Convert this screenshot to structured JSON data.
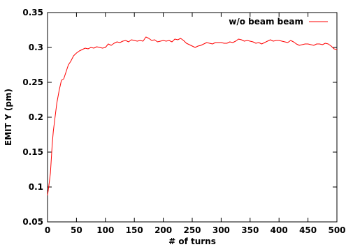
{
  "chart_data": {
    "type": "line",
    "title": "",
    "xlabel": "# of turns",
    "ylabel": "EMIT Y (pm)",
    "xlim": [
      0,
      500
    ],
    "ylim": [
      0.05,
      0.35
    ],
    "grid": false,
    "legend_position": "top-right",
    "x_ticks": [
      0,
      50,
      100,
      150,
      200,
      250,
      300,
      350,
      400,
      450,
      500
    ],
    "x_tick_labels": [
      "0",
      "50",
      "100",
      "150",
      "200",
      "250",
      "300",
      "350",
      "400",
      "450",
      "500"
    ],
    "y_ticks": [
      0.05,
      0.1,
      0.15,
      0.2,
      0.25,
      0.3,
      0.35
    ],
    "y_tick_labels": [
      "0.05",
      "0.1",
      "0.15",
      "0.2",
      "0.25",
      "0.3",
      "0.35"
    ],
    "series": [
      {
        "name": "w/o beam beam",
        "color": "#ff0000",
        "x": [
          0,
          2,
          5,
          8,
          10,
          13,
          16,
          20,
          24,
          28,
          32,
          36,
          40,
          45,
          50,
          55,
          60,
          65,
          70,
          75,
          80,
          85,
          90,
          95,
          100,
          105,
          110,
          115,
          120,
          125,
          130,
          135,
          140,
          145,
          150,
          155,
          160,
          165,
          170,
          175,
          180,
          185,
          190,
          195,
          200,
          205,
          210,
          215,
          220,
          225,
          230,
          235,
          240,
          245,
          250,
          255,
          260,
          265,
          270,
          275,
          280,
          285,
          290,
          295,
          300,
          305,
          310,
          315,
          320,
          325,
          330,
          335,
          340,
          345,
          350,
          355,
          360,
          365,
          370,
          375,
          380,
          385,
          390,
          395,
          400,
          405,
          410,
          415,
          420,
          425,
          430,
          435,
          440,
          445,
          450,
          455,
          460,
          465,
          470,
          475,
          480,
          485,
          490,
          495,
          500
        ],
        "y": [
          0.088,
          0.1,
          0.12,
          0.16,
          0.18,
          0.2,
          0.22,
          0.238,
          0.253,
          0.255,
          0.265,
          0.275,
          0.28,
          0.288,
          0.292,
          0.295,
          0.297,
          0.299,
          0.298,
          0.3,
          0.299,
          0.301,
          0.3,
          0.299,
          0.3,
          0.305,
          0.303,
          0.306,
          0.308,
          0.307,
          0.309,
          0.31,
          0.308,
          0.311,
          0.31,
          0.309,
          0.31,
          0.309,
          0.315,
          0.313,
          0.31,
          0.311,
          0.308,
          0.309,
          0.31,
          0.309,
          0.31,
          0.308,
          0.312,
          0.311,
          0.313,
          0.31,
          0.306,
          0.304,
          0.302,
          0.3,
          0.302,
          0.303,
          0.305,
          0.307,
          0.306,
          0.305,
          0.307,
          0.307,
          0.307,
          0.306,
          0.306,
          0.308,
          0.307,
          0.309,
          0.312,
          0.311,
          0.309,
          0.31,
          0.309,
          0.308,
          0.306,
          0.307,
          0.305,
          0.307,
          0.309,
          0.311,
          0.309,
          0.31,
          0.31,
          0.309,
          0.308,
          0.307,
          0.31,
          0.308,
          0.305,
          0.303,
          0.304,
          0.305,
          0.305,
          0.304,
          0.303,
          0.305,
          0.305,
          0.304,
          0.306,
          0.305,
          0.302,
          0.298,
          0.297
        ]
      }
    ]
  }
}
